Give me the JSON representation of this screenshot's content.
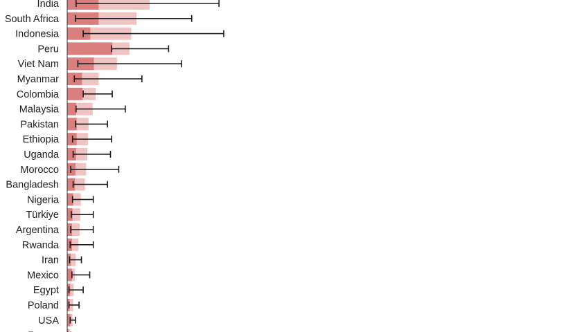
{
  "chart_data": {
    "type": "bar",
    "orientation": "horizontal",
    "title": "",
    "xlabel": "",
    "ylabel": "",
    "xlim": [
      0,
      280
    ],
    "grid": false,
    "colors": {
      "total": "#efc4c2",
      "subset": "#d9807f",
      "whisker": "#1a1a1a",
      "axis": "#333333"
    },
    "categories": [
      "India",
      "South Africa",
      "Indonesia",
      "Peru",
      "Viet Nam",
      "Myanmar",
      "Colombia",
      "Malaysia",
      "Pakistan",
      "Ethiopia",
      "Uganda",
      "Morocco",
      "Bangladesh",
      "Nigeria",
      "Türkiye",
      "Argentina",
      "Rwanda",
      "Iran",
      "Mexico",
      "Egypt",
      "Poland",
      "USA",
      "France"
    ],
    "series": [
      {
        "values": [
          139,
          117,
          108,
          105,
          84,
          53,
          48,
          43,
          36,
          35,
          34,
          32,
          30,
          23,
          22,
          21,
          19,
          14,
          13,
          11,
          10,
          9,
          5
        ]
      },
      {
        "values": [
          53,
          53,
          39,
          76,
          45,
          25,
          26,
          15,
          16,
          16,
          15,
          14,
          13,
          10,
          9,
          8,
          8,
          6,
          8,
          5,
          4,
          5,
          2
        ],
        "ci": [
          [
            15,
            256
          ],
          [
            14,
            210
          ],
          [
            27,
            264
          ],
          [
            75,
            171
          ],
          [
            18,
            193
          ],
          [
            12,
            126
          ],
          [
            27,
            76
          ],
          [
            15,
            98
          ],
          [
            14,
            68
          ],
          [
            9,
            75
          ],
          [
            10,
            73
          ],
          [
            6,
            87
          ],
          [
            10,
            68
          ],
          [
            9,
            44
          ],
          [
            7,
            44
          ],
          [
            6,
            44
          ],
          [
            5,
            44
          ],
          [
            4,
            24
          ],
          [
            8,
            38
          ],
          [
            3,
            27
          ],
          [
            3,
            20
          ],
          [
            5,
            14
          ],
          [
            1,
            6
          ]
        ]
      }
    ]
  }
}
